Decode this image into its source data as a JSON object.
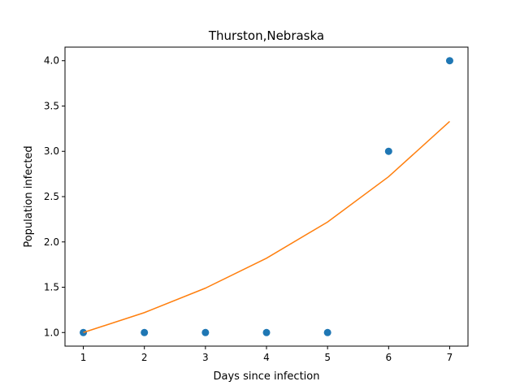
{
  "chart_data": {
    "type": "scatter",
    "title": "Thurston,Nebraska",
    "xlabel": "Days since infection",
    "ylabel": "Population infected",
    "xlim": [
      0.7,
      7.3
    ],
    "ylim": [
      0.85,
      4.15
    ],
    "xticks": [
      1,
      2,
      3,
      4,
      5,
      6,
      7
    ],
    "xtick_labels": [
      "1",
      "2",
      "3",
      "4",
      "5",
      "6",
      "7"
    ],
    "yticks": [
      1.0,
      1.5,
      2.0,
      2.5,
      3.0,
      3.5,
      4.0
    ],
    "ytick_labels": [
      "1.0",
      "1.5",
      "2.0",
      "2.5",
      "3.0",
      "3.5",
      "4.0"
    ],
    "grid": false,
    "series": [
      {
        "type": "scatter",
        "color": "#1f77b4",
        "x": [
          1,
          2,
          3,
          4,
          5,
          6,
          7
        ],
        "y": [
          1,
          1,
          1,
          1,
          1,
          3,
          4
        ]
      },
      {
        "type": "line",
        "color": "#ff7f0e",
        "x": [
          1,
          2,
          3,
          4,
          5,
          6,
          7
        ],
        "y": [
          1.0,
          1.22,
          1.49,
          1.82,
          2.22,
          2.72,
          3.33
        ]
      }
    ]
  }
}
